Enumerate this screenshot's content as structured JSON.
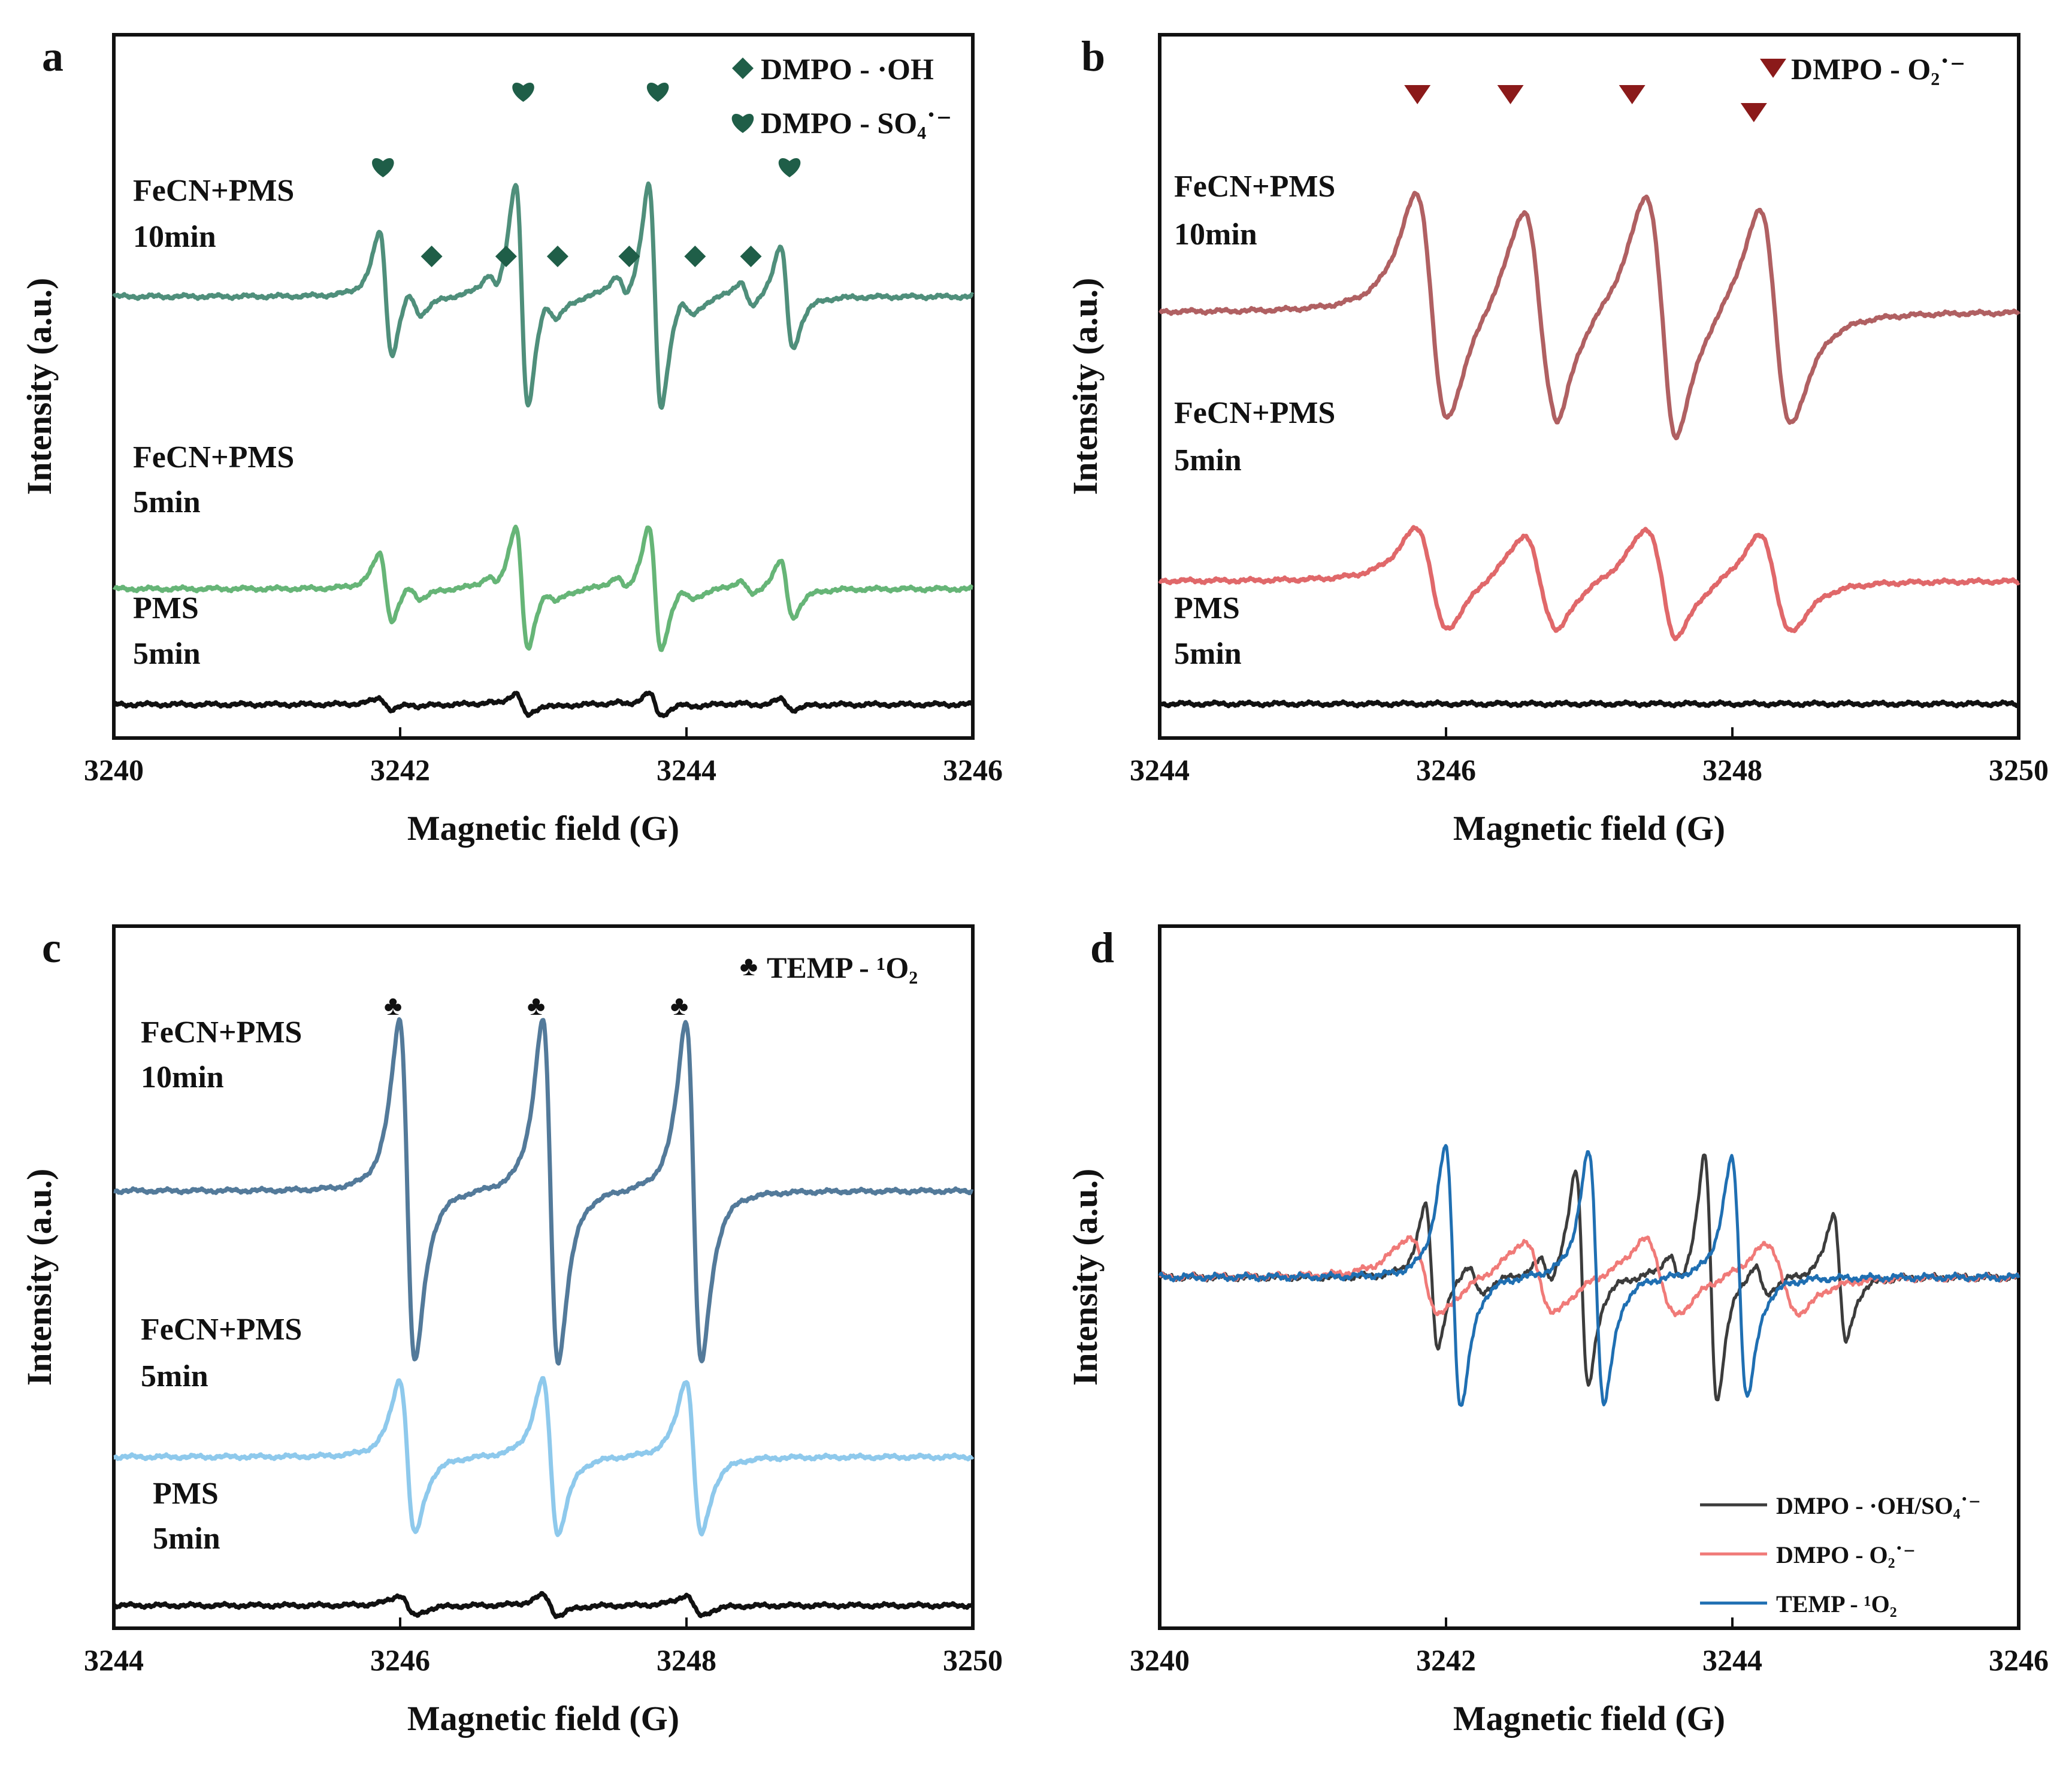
{
  "chart_data": [
    {
      "panel": "a",
      "type": "line",
      "xlabel": "Magnetic field (G)",
      "ylabel": "Intensity (a.u.)",
      "xlim": [
        3240,
        3246
      ],
      "xticks": [
        "3240",
        "3242",
        "3244",
        "3246"
      ],
      "legend": [
        {
          "marker": "diamond",
          "label": "DMPO - ·OH",
          "color": "#1f5e48"
        },
        {
          "marker": "heart",
          "label": "DMPO - SO₄˙⁻",
          "color": "#1f5e48"
        }
      ],
      "series": [
        {
          "name": "FeCN+PMS 10min",
          "label_line1": "FeCN+PMS",
          "label_line2": "10min",
          "color": "#4f8f7b",
          "offset": 2.0,
          "amplitude": 1.0
        },
        {
          "name": "FeCN+PMS 5min",
          "label_line1": "FeCN+PMS",
          "label_line2": "5min",
          "color": "#66b577",
          "offset": 1.0,
          "amplitude": 0.55
        },
        {
          "name": "PMS 5min",
          "label_line1": "PMS",
          "label_line2": "5min",
          "color": "#111111",
          "offset": 0.0,
          "amplitude": 0.1
        }
      ],
      "peaks": [
        {
          "x": 3241.9,
          "h": 0.55,
          "w": 0.045
        },
        {
          "x": 3242.1,
          "h": 0.12,
          "w": 0.05
        },
        {
          "x": 3242.65,
          "h": 0.1,
          "w": 0.04
        },
        {
          "x": 3242.85,
          "h": 1.0,
          "w": 0.045
        },
        {
          "x": 3243.05,
          "h": 0.12,
          "w": 0.05
        },
        {
          "x": 3243.55,
          "h": 0.12,
          "w": 0.045
        },
        {
          "x": 3243.78,
          "h": 1.0,
          "w": 0.045
        },
        {
          "x": 3244.0,
          "h": 0.1,
          "w": 0.05
        },
        {
          "x": 3244.42,
          "h": 0.12,
          "w": 0.045
        },
        {
          "x": 3244.7,
          "h": 0.45,
          "w": 0.045
        }
      ],
      "markers": [
        {
          "x": 3241.88,
          "symbol": "heart"
        },
        {
          "x": 3242.22,
          "symbol": "diamond"
        },
        {
          "x": 3242.74,
          "symbol": "diamond"
        },
        {
          "x": 3242.86,
          "symbol": "heart"
        },
        {
          "x": 3243.1,
          "symbol": "diamond"
        },
        {
          "x": 3243.6,
          "symbol": "diamond"
        },
        {
          "x": 3243.8,
          "symbol": "heart"
        },
        {
          "x": 3244.06,
          "symbol": "diamond"
        },
        {
          "x": 3244.45,
          "symbol": "diamond"
        },
        {
          "x": 3244.72,
          "symbol": "heart"
        }
      ]
    },
    {
      "panel": "b",
      "type": "line",
      "xlabel": "Magnetic field (G)",
      "ylabel": "Intensity (a.u.)",
      "xlim": [
        3244,
        3250
      ],
      "xticks": [
        "3244",
        "3246",
        "3248",
        "3250"
      ],
      "legend": [
        {
          "marker": "triangle-down",
          "label": "DMPO - O₂˙⁻",
          "color": "#8b1a1a"
        }
      ],
      "series": [
        {
          "name": "FeCN+PMS 10min",
          "label_line1": "FeCN+PMS",
          "label_line2": "10min",
          "color": "#b06062",
          "offset": 2.0,
          "amplitude": 1.0
        },
        {
          "name": "FeCN+PMS 5min",
          "label_line1": "FeCN+PMS",
          "label_line2": "5min",
          "color": "#e0686a",
          "offset": 1.0,
          "amplitude": 0.45
        },
        {
          "name": "PMS 5min",
          "label_line1": "PMS",
          "label_line2": "5min",
          "color": "#111111",
          "offset": 0.0,
          "amplitude": 0.0
        }
      ],
      "peaks": [
        {
          "x": 3245.9,
          "h": 1.0,
          "w": 0.11
        },
        {
          "x": 3246.65,
          "h": 0.9,
          "w": 0.11
        },
        {
          "x": 3247.5,
          "h": 1.0,
          "w": 0.11
        },
        {
          "x": 3248.3,
          "h": 0.95,
          "w": 0.11
        },
        {
          "x": 3246.75,
          "h": 0.12,
          "w": 0.05
        },
        {
          "x": 3247.55,
          "h": 0.12,
          "w": 0.05
        }
      ],
      "markers": [
        {
          "x": 3245.8,
          "symbol": "triangle-down"
        },
        {
          "x": 3246.45,
          "symbol": "triangle-down"
        },
        {
          "x": 3247.3,
          "symbol": "triangle-down"
        },
        {
          "x": 3248.15,
          "symbol": "triangle-down"
        }
      ]
    },
    {
      "panel": "c",
      "type": "line",
      "xlabel": "Magnetic field (G)",
      "ylabel": "Intensity (a.u.)",
      "xlim": [
        3244,
        3250
      ],
      "xticks": [
        "3244",
        "3246",
        "3248",
        "3250"
      ],
      "legend": [
        {
          "marker": "club",
          "label": "TEMP - ¹O₂",
          "color": "#1a3f6b"
        }
      ],
      "series": [
        {
          "name": "FeCN+PMS 10min",
          "label_line1": "FeCN+PMS",
          "label_line2": "10min",
          "color": "#537a9a",
          "offset": 2.0,
          "amplitude": 1.0
        },
        {
          "name": "FeCN+PMS 5min",
          "label_line1": "FeCN+PMS",
          "label_line2": "5min",
          "color": "#8ec9ec",
          "offset": 1.0,
          "amplitude": 0.45
        },
        {
          "name": "PMS 5min",
          "label_line1": "PMS",
          "label_line2": "5min",
          "color": "#111111",
          "offset": 0.0,
          "amplitude": 0.06
        }
      ],
      "peaks": [
        {
          "x": 3246.05,
          "h": 1.0,
          "w": 0.055
        },
        {
          "x": 3247.05,
          "h": 1.0,
          "w": 0.055
        },
        {
          "x": 3248.05,
          "h": 1.0,
          "w": 0.055
        }
      ],
      "markers": [
        {
          "x": 3245.95,
          "symbol": "club"
        },
        {
          "x": 3246.95,
          "symbol": "club"
        },
        {
          "x": 3247.95,
          "symbol": "club"
        }
      ]
    },
    {
      "panel": "d",
      "type": "line",
      "xlabel": "Magnetic field (G)",
      "ylabel": "Intensity (a.u.)",
      "xlim": [
        3240,
        3246
      ],
      "xticks": [
        "3240",
        "3242",
        "3244",
        "3246"
      ],
      "series": [
        {
          "name": "DMPO - ·OH/SO₄˙⁻",
          "color": "#3c3c3c",
          "peaks": [
            {
              "x": 3241.9,
              "h": 0.55,
              "w": 0.045
            },
            {
              "x": 3242.2,
              "h": 0.12,
              "w": 0.05
            },
            {
              "x": 3242.7,
              "h": 0.1,
              "w": 0.04
            },
            {
              "x": 3242.95,
              "h": 0.85,
              "w": 0.045
            },
            {
              "x": 3243.6,
              "h": 0.12,
              "w": 0.045
            },
            {
              "x": 3243.85,
              "h": 0.95,
              "w": 0.045
            },
            {
              "x": 3244.2,
              "h": 0.12,
              "w": 0.045
            },
            {
              "x": 3244.75,
              "h": 0.5,
              "w": 0.045
            }
          ]
        },
        {
          "name": "DMPO - O₂˙⁻",
          "color": "#f07a78",
          "peaks": [
            {
              "x": 3241.85,
              "h": 0.3,
              "w": 0.11
            },
            {
              "x": 3242.65,
              "h": 0.28,
              "w": 0.11
            },
            {
              "x": 3243.5,
              "h": 0.3,
              "w": 0.11
            },
            {
              "x": 3244.35,
              "h": 0.27,
              "w": 0.11
            }
          ]
        },
        {
          "name": "TEMP - ¹O₂",
          "color": "#1f6fb2",
          "peaks": [
            {
              "x": 3242.05,
              "h": 1.0,
              "w": 0.055
            },
            {
              "x": 3243.05,
              "h": 0.97,
              "w": 0.055
            },
            {
              "x": 3244.05,
              "h": 0.92,
              "w": 0.055
            }
          ]
        }
      ]
    }
  ]
}
